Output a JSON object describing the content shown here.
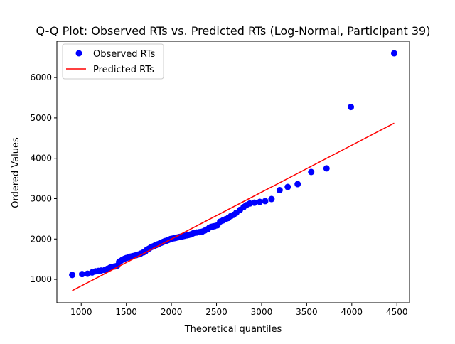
{
  "chart_data": {
    "type": "scatter",
    "title": "Q-Q Plot: Observed RTs vs. Predicted RTs (Log-Normal, Participant 39)",
    "xlabel": "Theoretical quantiles",
    "ylabel": "Ordered Values",
    "xlim": [
      730,
      4640
    ],
    "ylim": [
      420,
      6900
    ],
    "x_ticks": [
      1000,
      1500,
      2000,
      2500,
      3000,
      3500,
      4000,
      4500
    ],
    "y_ticks": [
      1000,
      2000,
      3000,
      4000,
      5000,
      6000
    ],
    "grid": false,
    "legend_position": "upper-left",
    "series": [
      {
        "name": "Observed RTs",
        "kind": "markers",
        "color": "#0000ff",
        "points": [
          [
            900,
            1110
          ],
          [
            1010,
            1130
          ],
          [
            1070,
            1140
          ],
          [
            1120,
            1170
          ],
          [
            1160,
            1200
          ],
          [
            1190,
            1210
          ],
          [
            1220,
            1220
          ],
          [
            1260,
            1230
          ],
          [
            1290,
            1260
          ],
          [
            1320,
            1290
          ],
          [
            1340,
            1310
          ],
          [
            1370,
            1320
          ],
          [
            1400,
            1340
          ],
          [
            1420,
            1430
          ],
          [
            1440,
            1460
          ],
          [
            1460,
            1490
          ],
          [
            1480,
            1510
          ],
          [
            1500,
            1530
          ],
          [
            1520,
            1540
          ],
          [
            1540,
            1560
          ],
          [
            1560,
            1570
          ],
          [
            1580,
            1580
          ],
          [
            1610,
            1600
          ],
          [
            1640,
            1620
          ],
          [
            1660,
            1640
          ],
          [
            1690,
            1670
          ],
          [
            1710,
            1690
          ],
          [
            1730,
            1740
          ],
          [
            1750,
            1760
          ],
          [
            1770,
            1790
          ],
          [
            1790,
            1810
          ],
          [
            1810,
            1830
          ],
          [
            1830,
            1850
          ],
          [
            1850,
            1870
          ],
          [
            1870,
            1890
          ],
          [
            1890,
            1910
          ],
          [
            1910,
            1930
          ],
          [
            1930,
            1950
          ],
          [
            1950,
            1960
          ],
          [
            1970,
            1980
          ],
          [
            1990,
            2000
          ],
          [
            2010,
            2010
          ],
          [
            2030,
            2020
          ],
          [
            2050,
            2030
          ],
          [
            2070,
            2040
          ],
          [
            2090,
            2050
          ],
          [
            2110,
            2060
          ],
          [
            2130,
            2070
          ],
          [
            2150,
            2080
          ],
          [
            2170,
            2090
          ],
          [
            2190,
            2100
          ],
          [
            2210,
            2110
          ],
          [
            2230,
            2130
          ],
          [
            2250,
            2150
          ],
          [
            2280,
            2160
          ],
          [
            2310,
            2170
          ],
          [
            2340,
            2180
          ],
          [
            2370,
            2210
          ],
          [
            2400,
            2240
          ],
          [
            2420,
            2280
          ],
          [
            2440,
            2300
          ],
          [
            2460,
            2310
          ],
          [
            2480,
            2320
          ],
          [
            2510,
            2340
          ],
          [
            2540,
            2430
          ],
          [
            2570,
            2460
          ],
          [
            2600,
            2490
          ],
          [
            2630,
            2520
          ],
          [
            2660,
            2570
          ],
          [
            2690,
            2600
          ],
          [
            2720,
            2650
          ],
          [
            2760,
            2720
          ],
          [
            2800,
            2790
          ],
          [
            2830,
            2840
          ],
          [
            2870,
            2880
          ],
          [
            2920,
            2900
          ],
          [
            2980,
            2920
          ],
          [
            3040,
            2940
          ],
          [
            3110,
            2990
          ],
          [
            3200,
            3210
          ],
          [
            3290,
            3290
          ],
          [
            3400,
            3360
          ],
          [
            3550,
            3660
          ],
          [
            3720,
            3750
          ],
          [
            3990,
            5270
          ],
          [
            4470,
            6600
          ]
        ]
      },
      {
        "name": "Predicted RTs",
        "kind": "line",
        "color": "#ff0000",
        "points": [
          [
            900,
            720
          ],
          [
            4470,
            4870
          ]
        ]
      }
    ]
  }
}
